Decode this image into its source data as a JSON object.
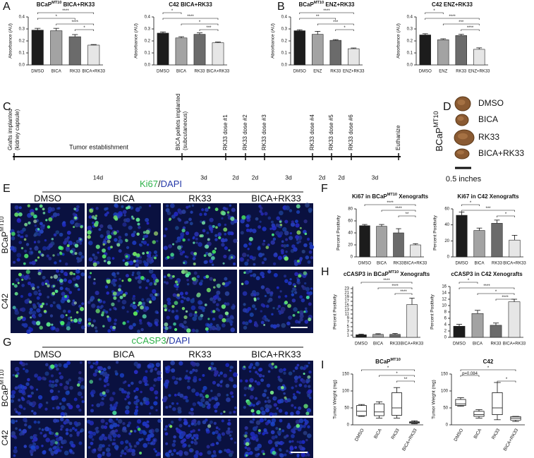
{
  "panel_labels": [
    "A",
    "B",
    "C",
    "D",
    "E",
    "F",
    "G",
    "H",
    "I"
  ],
  "chart_data": [
    {
      "type": "bar",
      "title": [
        "BCaP",
        "MT10",
        " BICA+RK33"
      ],
      "ylabel": "Absorbance (AU)",
      "categories": [
        "DMSO",
        "BICA",
        "RK33",
        "BICA+RK33"
      ],
      "values": [
        0.29,
        0.285,
        0.235,
        0.165
      ],
      "errors": [
        0.015,
        0.02,
        0.018,
        0.005
      ],
      "colors": [
        "#1c1c1c",
        "#a3a3a3",
        "#6b6b6b",
        "#e6e6e6"
      ],
      "ylim": [
        0,
        0.4
      ],
      "yticks": [
        {
          "value": 0,
          "label": "0.0"
        },
        0.1,
        0.2,
        0.3,
        0.4
      ],
      "significance": [
        {
          "from": 0,
          "to": 3,
          "label": "****"
        },
        {
          "from": 0,
          "to": 2,
          "label": "*"
        },
        {
          "from": 1,
          "to": 3,
          "label": "****"
        },
        {
          "from": 2,
          "to": 3,
          "label": "*"
        }
      ]
    },
    {
      "type": "bar",
      "title": "C42 BICA+RK33",
      "ylabel": "Absorbance (AU)",
      "categories": [
        "DMSO",
        "BICA",
        "RK33",
        "BICA+RK33"
      ],
      "values": [
        0.265,
        0.225,
        0.255,
        0.185
      ],
      "errors": [
        0.01,
        0.01,
        0.012,
        0.006
      ],
      "colors": [
        "#1c1c1c",
        "#a3a3a3",
        "#6b6b6b",
        "#e6e6e6"
      ],
      "ylim": [
        0,
        0.4
      ],
      "yticks": [
        {
          "value": 0,
          "label": "0.0"
        },
        0.1,
        0.2,
        0.3,
        0.4
      ],
      "significance": [
        {
          "from": 0,
          "to": 1,
          "label": "*"
        },
        {
          "from": 0,
          "to": 3,
          "label": "****"
        },
        {
          "from": 1,
          "to": 3,
          "label": "*"
        },
        {
          "from": 2,
          "to": 3,
          "label": "***"
        }
      ]
    },
    {
      "type": "bar",
      "title": [
        "BCaP",
        "MT10",
        " ENZ+RK33"
      ],
      "ylabel": "Absorbance (AU)",
      "categories": [
        "DMSO",
        "ENZ",
        "RK33",
        "ENZ+RK33"
      ],
      "values": [
        0.285,
        0.255,
        0.205,
        0.135
      ],
      "errors": [
        0.008,
        0.025,
        0.006,
        0.006
      ],
      "colors": [
        "#1c1c1c",
        "#a3a3a3",
        "#6b6b6b",
        "#e6e6e6"
      ],
      "ylim": [
        0,
        0.4
      ],
      "yticks": [
        {
          "value": 0,
          "label": "0.0"
        },
        0.1,
        0.2,
        0.3,
        0.4
      ],
      "significance": [
        {
          "from": 0,
          "to": 3,
          "label": "****"
        },
        {
          "from": 0,
          "to": 2,
          "label": "**"
        },
        {
          "from": 1,
          "to": 3,
          "label": "***"
        },
        {
          "from": 2,
          "to": 3,
          "label": "*"
        }
      ]
    },
    {
      "type": "bar",
      "title": "C42 ENZ+RK33",
      "ylabel": "Absorbance (AU)",
      "categories": [
        "DMSO",
        "ENZ",
        "RK33",
        "ENZ+RK33"
      ],
      "values": [
        0.25,
        0.21,
        0.245,
        0.13
      ],
      "errors": [
        0.01,
        0.008,
        0.01,
        0.012
      ],
      "colors": [
        "#1c1c1c",
        "#a3a3a3",
        "#6b6b6b",
        "#e6e6e6"
      ],
      "ylim": [
        0,
        0.4
      ],
      "yticks": [
        {
          "value": 0,
          "label": "0.0"
        },
        0.1,
        0.2,
        0.3,
        0.4
      ],
      "significance": [
        {
          "from": 0,
          "to": 1,
          "label": "*"
        },
        {
          "from": 0,
          "to": 3,
          "label": "****"
        },
        {
          "from": 1,
          "to": 3,
          "label": "***"
        },
        {
          "from": 2,
          "to": 3,
          "label": "****"
        }
      ]
    },
    {
      "type": "bar",
      "title": [
        "Ki67 in BCaP",
        "MT10",
        " Xenografts"
      ],
      "ylabel": "Percent Positivity",
      "categories": [
        "DMSO",
        "BICA",
        "RK33",
        "BICA+RK33"
      ],
      "values": [
        52,
        51,
        40,
        20
      ],
      "errors": [
        2,
        3,
        7,
        2
      ],
      "colors": [
        "#1c1c1c",
        "#a3a3a3",
        "#6b6b6b",
        "#e6e6e6"
      ],
      "ylim": [
        0,
        80
      ],
      "yticks": [
        0,
        20,
        40,
        60,
        80
      ],
      "significance": [
        {
          "from": 0,
          "to": 3,
          "label": "****"
        },
        {
          "from": 1,
          "to": 3,
          "label": "****"
        },
        {
          "from": 2,
          "to": 3,
          "label": "**"
        }
      ]
    },
    {
      "type": "bar",
      "title": "Ki67 in C42 Xenografts",
      "ylabel": "Percent Positivity",
      "categories": [
        "DMSO",
        "BICA",
        "RK33",
        "BICA+RK33"
      ],
      "values": [
        52,
        33,
        42,
        21
      ],
      "errors": [
        4,
        3,
        4,
        6
      ],
      "colors": [
        "#1c1c1c",
        "#a3a3a3",
        "#6b6b6b",
        "#e6e6e6"
      ],
      "ylim": [
        0,
        60
      ],
      "yticks": [
        0,
        20,
        40,
        60
      ],
      "significance": [
        {
          "from": 0,
          "to": 1,
          "label": "*"
        },
        {
          "from": 0,
          "to": 3,
          "label": "***"
        },
        {
          "from": 2,
          "to": 3,
          "label": "*"
        }
      ]
    },
    {
      "type": "bar",
      "title": [
        "cCASP3 in BCaP",
        "MT10",
        " Xenografts"
      ],
      "ylabel": "Percent Positivity",
      "categories": [
        "DMSO",
        "BICA",
        "RK33",
        "BICA+RK33"
      ],
      "values": [
        1.2,
        1.4,
        1.4,
        15.5
      ],
      "errors": [
        0.3,
        0.3,
        0.4,
        3
      ],
      "colors": [
        "#1c1c1c",
        "#a3a3a3",
        "#6b6b6b",
        "#e6e6e6"
      ],
      "ylim": [
        0,
        24
      ],
      "yticks": [
        1,
        3,
        5,
        7,
        9,
        11,
        13,
        15,
        17,
        19,
        21,
        23
      ],
      "significance": [
        {
          "from": 0,
          "to": 3,
          "label": "****"
        },
        {
          "from": 1,
          "to": 3,
          "label": "****"
        },
        {
          "from": 2,
          "to": 3,
          "label": "****"
        }
      ]
    },
    {
      "type": "bar",
      "title": "cCASP3 in C42 Xenografts",
      "ylabel": "Percent Positivity",
      "categories": [
        "DMSO",
        "BICA",
        "RK33",
        "BICA+RK33"
      ],
      "values": [
        3.5,
        7.5,
        3.8,
        11.2
      ],
      "errors": [
        0.6,
        1,
        0.7,
        0.8
      ],
      "colors": [
        "#1c1c1c",
        "#a3a3a3",
        "#6b6b6b",
        "#e6e6e6"
      ],
      "ylim": [
        0,
        16
      ],
      "yticks": [
        0,
        2,
        4,
        6,
        8,
        10,
        12,
        14,
        16
      ],
      "significance": [
        {
          "from": 0,
          "to": 1,
          "label": "*"
        },
        {
          "from": 0,
          "to": 3,
          "label": "****"
        },
        {
          "from": 1,
          "to": 3,
          "label": "*"
        },
        {
          "from": 2,
          "to": 3,
          "label": "****"
        }
      ]
    },
    {
      "type": "box",
      "title": [
        "BCaP",
        "MT10"
      ],
      "ylabel": "Tumor Weight (mg)",
      "categories": [
        "DMSO",
        "BICA",
        "RK33",
        "BICA+RK33"
      ],
      "boxes": [
        [
          25,
          27,
          40,
          57,
          60
        ],
        [
          20,
          27,
          38,
          62,
          68
        ],
        [
          20,
          28,
          50,
          95,
          110
        ],
        [
          3,
          5,
          7,
          9,
          12
        ]
      ],
      "ylim": [
        0,
        150
      ],
      "yticks": [
        0,
        50,
        100,
        150
      ],
      "significance": [
        {
          "from": 0,
          "to": 3,
          "label": "*"
        },
        {
          "from": 1,
          "to": 3,
          "label": "*"
        },
        {
          "from": 2,
          "to": 3,
          "label": "**"
        }
      ]
    },
    {
      "type": "box",
      "title": "C42",
      "ylabel": "Tumor Weight (mg)",
      "categories": [
        "DMSO",
        "BICA",
        "RK33",
        "BICA+RK33"
      ],
      "boxes": [
        [
          55,
          57,
          62,
          75,
          80
        ],
        [
          20,
          25,
          30,
          40,
          45
        ],
        [
          15,
          30,
          50,
          95,
          125
        ],
        [
          10,
          14,
          20,
          24,
          25
        ]
      ],
      "ylim": [
        0,
        150
      ],
      "yticks": [
        0,
        50,
        100,
        150
      ],
      "significance": [
        {
          "from": 0,
          "to": 3,
          "label": "*"
        },
        {
          "from": 0,
          "to": 1,
          "label": "p=0.084"
        },
        {
          "from": 2,
          "to": 3,
          "label": "*"
        }
      ]
    }
  ],
  "timeline": {
    "events": [
      [
        "Grafts implanted",
        "(kidney capsule)"
      ],
      [
        "BICA pellets implanted",
        "(subcutaneous)"
      ],
      [
        "RK33 dose #1"
      ],
      [
        "RK33 dose #2"
      ],
      [
        "RK33 dose #3"
      ],
      [
        "RK33 dose #4"
      ],
      [
        "RK33 dose #5"
      ],
      [
        "RK33 dose #6"
      ],
      [
        "Euthanize"
      ]
    ],
    "phase_label": "Tumor establishment",
    "intervals": [
      "14d",
      "3d",
      "2d",
      "2d",
      "3d",
      "2d",
      "2d",
      "3d"
    ]
  },
  "tumor_images": {
    "model": [
      "BCaP",
      "MT10"
    ],
    "treatments": [
      "DMSO",
      "BICA",
      "RK33",
      "BICA+RK33"
    ],
    "scale_label": "0.5 inches"
  },
  "staining": [
    {
      "marker": "Ki67",
      "separator": "/",
      "counterstain": "DAPI",
      "columns": [
        "DMSO",
        "BICA",
        "RK33",
        "BICA+RK33"
      ],
      "rows": [
        [
          "BCaP",
          "MT10"
        ],
        "C42"
      ]
    },
    {
      "marker": "cCASP3",
      "separator": "/",
      "counterstain": "DAPI",
      "columns": [
        "DMSO",
        "BICA",
        "RK33",
        "BICA+RK33"
      ],
      "rows": [
        [
          "BCaP",
          "MT10"
        ],
        "C42"
      ]
    }
  ]
}
